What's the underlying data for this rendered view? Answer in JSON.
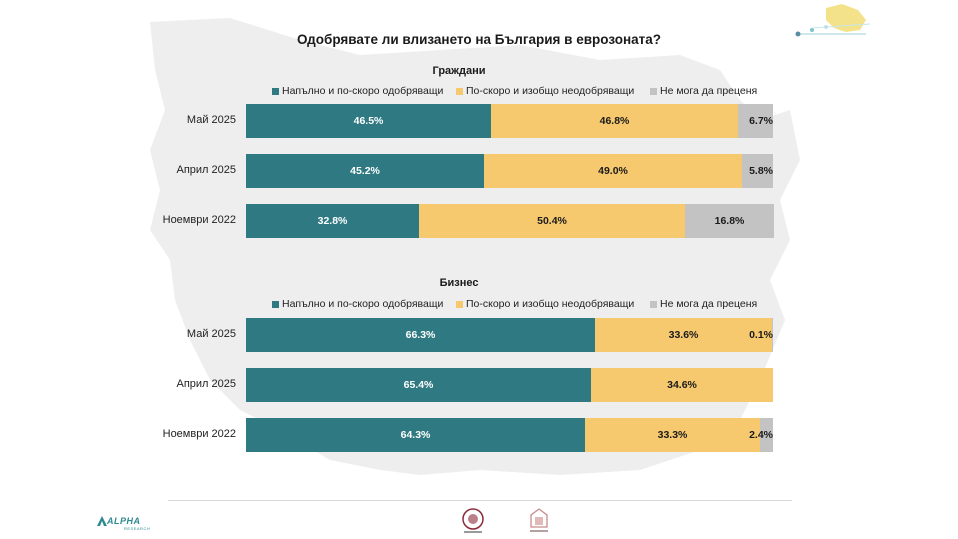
{
  "title": "Одобрявате ли влизането на България в еврозоната?",
  "colors": {
    "approve": "#2f7a82",
    "disapprove": "#f6c96f",
    "unsure": "#c3c3c3",
    "map_bg": "#eeeeee"
  },
  "branding": {
    "alpha_logo_text": "ALPHA",
    "alpha_logo_sub": "RESEARCH"
  },
  "chart_data": [
    {
      "type": "bar",
      "orientation": "horizontal-stacked",
      "title": "Граждани",
      "categories": [
        "Май 2025",
        "Април 2025",
        "Ноември 2022"
      ],
      "series": [
        {
          "name": "Напълно и по-скоро одобряващи",
          "values": [
            46.5,
            45.2,
            32.8
          ]
        },
        {
          "name": "По-скоро и изобщо неодобряващи",
          "values": [
            46.8,
            49.0,
            50.4
          ]
        },
        {
          "name": "Не мога да преценя",
          "values": [
            6.7,
            5.8,
            16.8
          ]
        }
      ],
      "labels": [
        [
          "46.5%",
          "45.2%",
          "32.8%"
        ],
        [
          "46.8%",
          "49.0%",
          "50.4%"
        ],
        [
          "6.7%",
          "5.8%",
          "16.8%"
        ]
      ],
      "xlim": [
        0,
        100
      ],
      "legend": "top"
    },
    {
      "type": "bar",
      "orientation": "horizontal-stacked",
      "title": "Бизнес",
      "categories": [
        "Май 2025",
        "Април 2025",
        "Ноември 2022"
      ],
      "series": [
        {
          "name": "Напълно и по-скоро одобряващи",
          "values": [
            66.3,
            65.4,
            64.3
          ]
        },
        {
          "name": "По-скоро и изобщо неодобряващи",
          "values": [
            33.6,
            34.6,
            33.3
          ]
        },
        {
          "name": "Не мога да преценя",
          "values": [
            0.1,
            0.0,
            2.4
          ]
        }
      ],
      "labels": [
        [
          "66.3%",
          "65.4%",
          "64.3%"
        ],
        [
          "33.6%",
          "34.6%",
          "33.3%"
        ],
        [
          "0.1%",
          "",
          "2.4%"
        ]
      ],
      "xlim": [
        0,
        100
      ],
      "legend": "top"
    }
  ]
}
